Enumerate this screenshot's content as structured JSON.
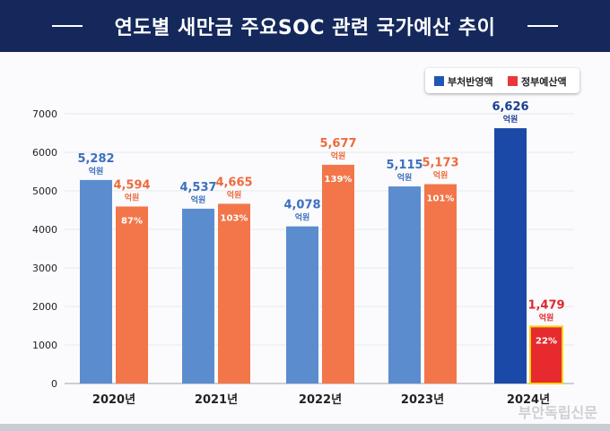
{
  "title": "연도별 새만금 주요SOC 관련 국가예산 추이",
  "watermark": "부안독립신문",
  "legend": [
    {
      "name": "부처반영액",
      "color": "#1f57b4"
    },
    {
      "name": "정부예산액",
      "color": "#e8383a"
    }
  ],
  "chart_data": {
    "type": "bar",
    "categories": [
      "2020년",
      "2021년",
      "2022년",
      "2023년",
      "2024년"
    ],
    "ylim": [
      0,
      7000
    ],
    "yticks": [
      0,
      1000,
      2000,
      3000,
      4000,
      5000,
      6000,
      7000
    ],
    "grid": true,
    "legend_position": "top-right",
    "unit_label": "억원",
    "series": [
      {
        "name": "부처반영액",
        "values": [
          5282,
          4537,
          4078,
          5115,
          6626
        ],
        "value_labels": [
          "5,282",
          "4,537",
          "4,078",
          "5,115",
          "6,626"
        ],
        "colors": [
          "#5b8dce",
          "#5b8dce",
          "#5b8dce",
          "#5b8dce",
          "#1a49a8"
        ],
        "label_colors": [
          "#3c6fbe",
          "#3c6fbe",
          "#3c6fbe",
          "#3c6fbe",
          "#1a3f94"
        ]
      },
      {
        "name": "정부예산액",
        "values": [
          4594,
          4665,
          5677,
          5173,
          1479
        ],
        "value_labels": [
          "4,594",
          "4,665",
          "5,677",
          "5,173",
          "1,479"
        ],
        "colors": [
          "#f2764a",
          "#f2764a",
          "#f2764a",
          "#f2764a",
          "#e62a2d"
        ],
        "label_colors": [
          "#ee6a3c",
          "#ee6a3c",
          "#ee6a3c",
          "#ee6a3c",
          "#e0282c"
        ],
        "ratio_labels": [
          "87%",
          "103%",
          "139%",
          "101%",
          "22%"
        ]
      }
    ],
    "highlight_category": "2024년",
    "highlight_border_color": "#f6d21a"
  }
}
